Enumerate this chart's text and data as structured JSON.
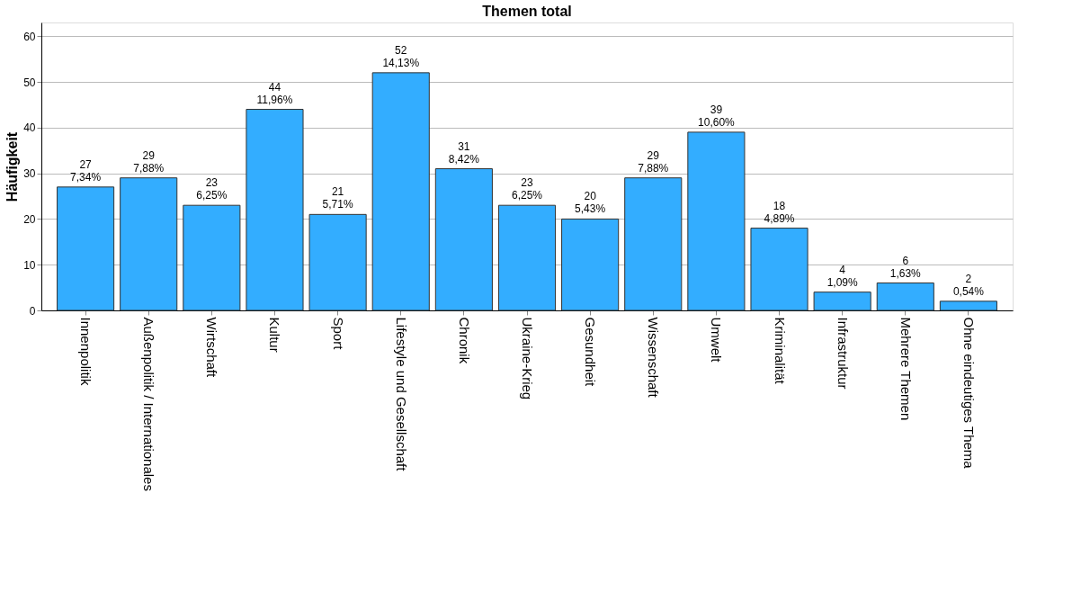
{
  "chart_data": {
    "type": "bar",
    "title": "Themen total",
    "ylabel": "Häufigkeit",
    "categories": [
      "Innenpolitik",
      "Außenpolitik / Internationales",
      "Wirtschaft",
      "Kultur",
      "Sport",
      "Lifestyle und Gesellschaft",
      "Chronik",
      "Ukraine-Krieg",
      "Gesundheit",
      "Wissenschaft",
      "Umwelt",
      "Kriminalität",
      "Infrastruktur",
      "Mehrere Themen",
      "Ohne eindeutiges Thema"
    ],
    "values": [
      27,
      29,
      23,
      44,
      21,
      52,
      31,
      23,
      20,
      29,
      39,
      18,
      4,
      6,
      2
    ],
    "value_labels": [
      "27\n7,34%",
      "29\n7,88%",
      "23\n6,25%",
      "44\n11,96%",
      "21\n5,71%",
      "52\n14,13%",
      "31\n8,42%",
      "23\n6,25%",
      "20\n5,43%",
      "29\n7,88%",
      "39\n10,60%",
      "18\n4,89%",
      "4\n1,09%",
      "6\n1,63%",
      "2\n0,54%"
    ],
    "color": "#33adff",
    "ylim": [
      0,
      63
    ],
    "yticks": [
      0,
      10,
      20,
      30,
      40,
      50,
      60
    ],
    "grid": "y"
  }
}
